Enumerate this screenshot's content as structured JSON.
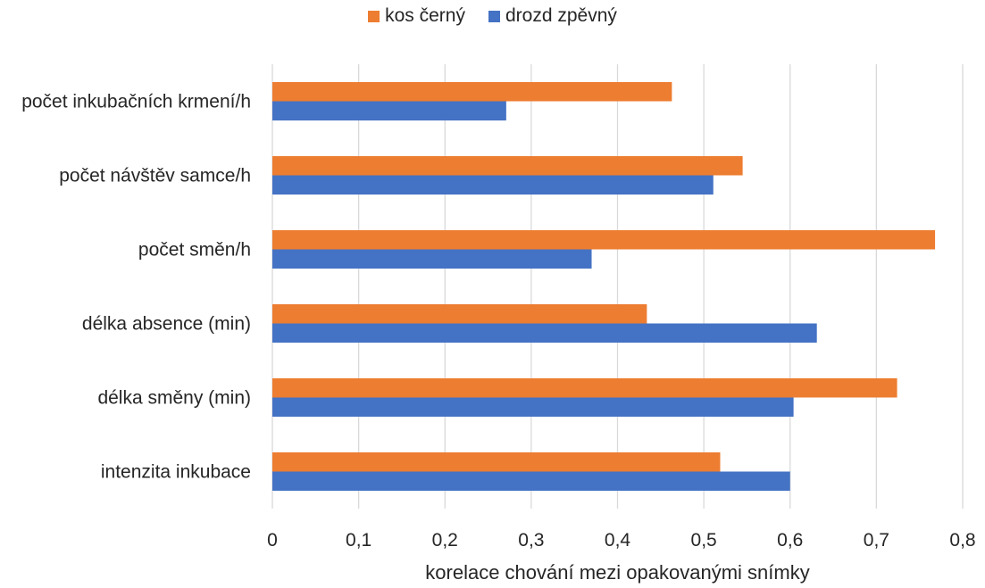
{
  "chart_data": {
    "type": "bar",
    "orientation": "horizontal",
    "categories": [
      "počet inkubačních krmení/h",
      "počet návštěv samce/h",
      "počet směn/h",
      "délka absence (min)",
      "délka směny (min)",
      "intenzita inkubace"
    ],
    "series": [
      {
        "name": "kos černý",
        "color": "#ED7D31",
        "values": [
          0.463,
          0.545,
          0.768,
          0.434,
          0.724,
          0.519
        ]
      },
      {
        "name": "drozd zpěvný",
        "color": "#4472C4",
        "values": [
          0.271,
          0.511,
          0.37,
          0.631,
          0.604,
          0.6
        ]
      }
    ],
    "xlabel": "korelace chování mezi opakovanými snímky",
    "ylabel": "",
    "xlim": [
      0,
      0.8
    ],
    "xticks": [
      "0",
      "0,1",
      "0,2",
      "0,3",
      "0,4",
      "0,5",
      "0,6",
      "0,7",
      "0,8"
    ],
    "grid": "vertical",
    "legend": "top-center"
  }
}
